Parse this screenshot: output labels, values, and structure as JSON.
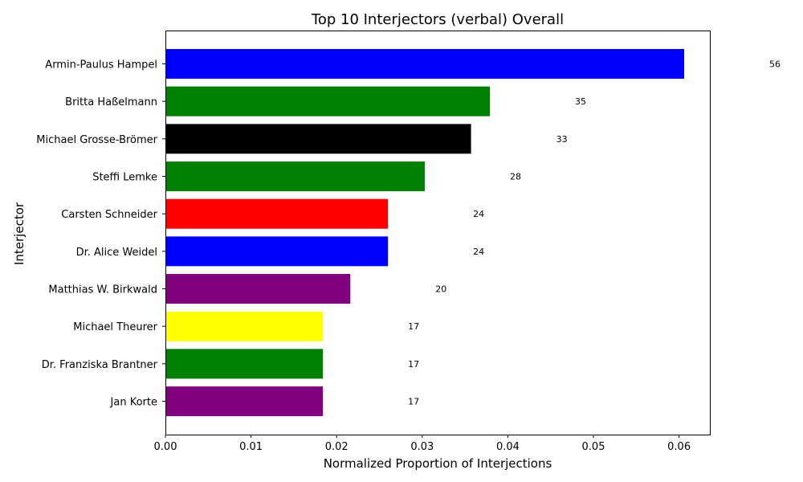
{
  "chart_data": {
    "type": "bar",
    "orientation": "horizontal",
    "title": "Top 10 Interjectors (verbal) Overall",
    "xlabel": "Normalized Proportion of Interjections",
    "ylabel": "Interjector",
    "xlim": [
      0,
      0.0636
    ],
    "xticks": [
      "0.00",
      "0.01",
      "0.02",
      "0.03",
      "0.04",
      "0.05",
      "0.06"
    ],
    "grid": false,
    "categories": [
      "Armin-Paulus Hampel",
      "Britta Haßelmann",
      "Michael Grosse-Brömer",
      "Steffi Lemke",
      "Carsten Schneider",
      "Dr. Alice Weidel",
      "Matthias W. Birkwald",
      "Michael Theurer",
      "Dr. Franziska Brantner",
      "Jan Korte"
    ],
    "values": [
      0.0606,
      0.0379,
      0.0357,
      0.0303,
      0.026,
      0.026,
      0.0216,
      0.0184,
      0.0184,
      0.0184
    ],
    "counts": [
      "56",
      "35",
      "33",
      "28",
      "24",
      "24",
      "20",
      "17",
      "17",
      "17"
    ],
    "colors": [
      "#0000ff",
      "#008000",
      "#000000",
      "#008000",
      "#ff0000",
      "#0000ff",
      "#800080",
      "#ffff00",
      "#008000",
      "#800080"
    ]
  }
}
